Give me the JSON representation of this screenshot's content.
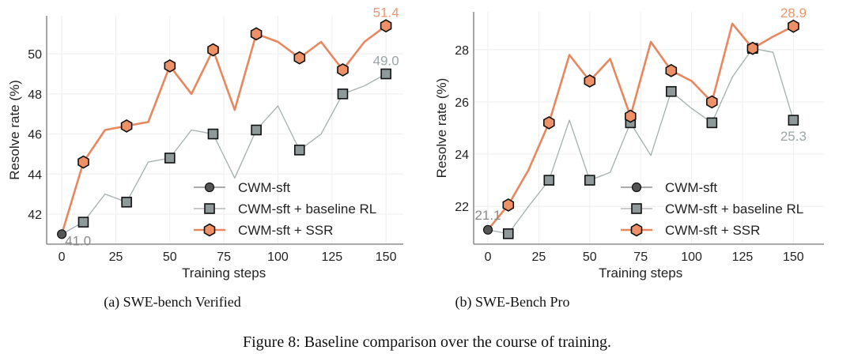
{
  "figure_caption": "Figure 8: Baseline comparison over the course of training.",
  "colors": {
    "ssr_line": "#E8875E",
    "ssr_marker": "#EE9166",
    "baseline_line": "#A3AEAE",
    "baseline_marker": "#8E9A9A",
    "sft_marker": "#555555",
    "grid": "#EEEEEE",
    "annotation_sft": "#8A8A8A",
    "annotation_baseline": "#9AA5A5",
    "annotation_ssr": "#F0956B"
  },
  "legend": [
    "CWM-sft",
    "CWM-sft + baseline RL",
    "CWM-sft + SSR"
  ],
  "chart_data": [
    {
      "type": "line",
      "caption": "(a) SWE-bench Verified",
      "xlabel": "Training steps",
      "ylabel": "Resolve rate (%)",
      "xlim": [
        -7,
        158
      ],
      "ylim": [
        40.5,
        51.9
      ],
      "xticks": [
        0,
        25,
        50,
        75,
        100,
        125,
        150
      ],
      "yticks": [
        42,
        44,
        46,
        48,
        50
      ],
      "grid": true,
      "legend_position": "lower-right",
      "x": [
        0,
        10,
        20,
        30,
        40,
        50,
        60,
        70,
        80,
        90,
        100,
        110,
        120,
        130,
        140,
        150
      ],
      "series": [
        {
          "name": "CWM-sft + baseline RL",
          "marker": "square",
          "values": [
            41.0,
            41.6,
            43.0,
            42.6,
            44.6,
            44.8,
            46.2,
            46.0,
            43.8,
            46.2,
            47.4,
            45.2,
            46.0,
            48.0,
            48.4,
            49.0
          ]
        },
        {
          "name": "CWM-sft + SSR",
          "marker": "hexagon",
          "values": [
            41.0,
            44.6,
            46.2,
            46.4,
            46.6,
            49.4,
            48.0,
            50.2,
            47.2,
            51.0,
            50.6,
            49.8,
            50.6,
            49.2,
            50.6,
            51.4
          ]
        }
      ],
      "sft_point": {
        "name": "CWM-sft",
        "x": 0,
        "value": 41.0
      },
      "annotations": [
        {
          "text": "41.0",
          "series": "CWM-sft",
          "x": 0,
          "placement": "below-right"
        },
        {
          "text": "49.0",
          "series": "CWM-sft + baseline RL",
          "x": 150,
          "placement": "above"
        },
        {
          "text": "51.4",
          "series": "CWM-sft + SSR",
          "x": 150,
          "placement": "above"
        }
      ]
    },
    {
      "type": "line",
      "caption": "(b) SWE-Bench Pro",
      "xlabel": "Training steps",
      "ylabel": "Resolve rate (%)",
      "xlim": [
        -7,
        165
      ],
      "ylim": [
        20.55,
        29.45
      ],
      "xticks": [
        0,
        25,
        50,
        75,
        100,
        125,
        150
      ],
      "yticks": [
        22,
        24,
        26,
        28
      ],
      "grid": true,
      "legend_position": "lower-right",
      "x": [
        0,
        10,
        20,
        30,
        40,
        50,
        60,
        70,
        80,
        90,
        100,
        110,
        120,
        130,
        140,
        150
      ],
      "series": [
        {
          "name": "CWM-sft + baseline RL",
          "marker": "square",
          "values": [
            21.1,
            20.95,
            22.0,
            23.0,
            25.3,
            23.0,
            23.3,
            25.2,
            23.95,
            26.4,
            25.75,
            25.2,
            26.95,
            28.05,
            27.9,
            25.3
          ]
        },
        {
          "name": "CWM-sft + SSR",
          "marker": "hexagon",
          "values": [
            21.1,
            22.05,
            23.4,
            25.2,
            27.8,
            26.8,
            27.65,
            25.45,
            28.3,
            27.2,
            26.8,
            26.0,
            29.0,
            28.05,
            28.5,
            28.9
          ]
        }
      ],
      "sft_point": {
        "name": "CWM-sft",
        "x": 0,
        "value": 21.1
      },
      "annotations": [
        {
          "text": "21.1",
          "series": "CWM-sft",
          "x": 0,
          "placement": "above"
        },
        {
          "text": "25.3",
          "series": "CWM-sft + baseline RL",
          "x": 150,
          "placement": "below"
        },
        {
          "text": "28.9",
          "series": "CWM-sft + SSR",
          "x": 150,
          "placement": "above"
        }
      ]
    }
  ]
}
